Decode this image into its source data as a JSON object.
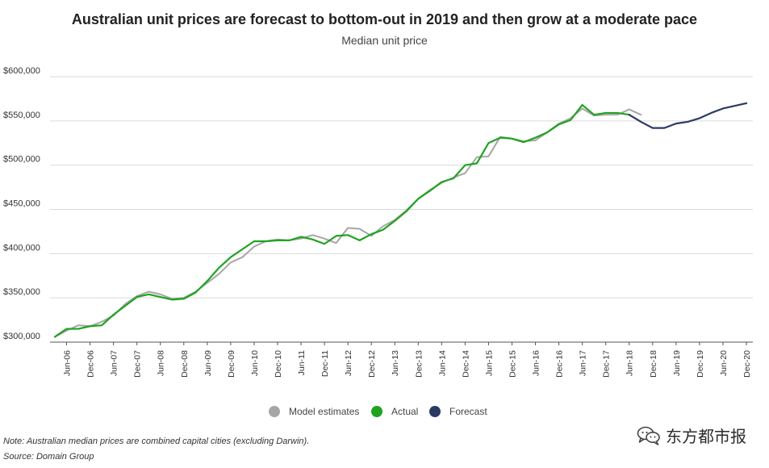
{
  "header": {
    "title": "Australian unit prices are forecast to bottom-out in 2019 and then grow at a moderate pace",
    "subtitle": "Median unit price"
  },
  "footer": {
    "note": "Note: Australian median prices are combined capital cities (excluding Darwin).",
    "source": "Source: Domain Group",
    "watermark_text": "东方都市报"
  },
  "colors": {
    "model": "#a6a6a6",
    "actual": "#1fa31f",
    "forecast": "#2b3a63",
    "grid": "#d9d9d9",
    "axis": "#555555"
  },
  "chart_data": {
    "type": "line",
    "x_axis_type": "quarterly",
    "xlabel": "",
    "ylabel": "",
    "ylim": [
      300000,
      600000
    ],
    "yticks": [
      300000,
      350000,
      400000,
      450000,
      500000,
      550000,
      600000
    ],
    "ytick_labels": [
      "$300,000",
      "$350,000",
      "$400,000",
      "$450,000",
      "$500,000",
      "$550,000",
      "$600,000"
    ],
    "xtick_labels": [
      "Jun-06",
      "Dec-06",
      "Jun-07",
      "Dec-07",
      "Jun-08",
      "Dec-08",
      "Jun-09",
      "Dec-09",
      "Jun-10",
      "Dec-10",
      "Jun-11",
      "Dec-11",
      "Jun-12",
      "Dec-12",
      "Jun-13",
      "Dec-13",
      "Jun-14",
      "Dec-14",
      "Jun-15",
      "Dec-15",
      "Jun-16",
      "Dec-16",
      "Jun-17",
      "Dec-17",
      "Jun-18",
      "Dec-18",
      "Jun-19",
      "Dec-19",
      "Jun-20",
      "Dec-20"
    ],
    "x": [
      "Mar-06",
      "Jun-06",
      "Sep-06",
      "Dec-06",
      "Mar-07",
      "Jun-07",
      "Sep-07",
      "Dec-07",
      "Mar-08",
      "Jun-08",
      "Sep-08",
      "Dec-08",
      "Mar-09",
      "Jun-09",
      "Sep-09",
      "Dec-09",
      "Mar-10",
      "Jun-10",
      "Sep-10",
      "Dec-10",
      "Mar-11",
      "Jun-11",
      "Sep-11",
      "Dec-11",
      "Mar-12",
      "Jun-12",
      "Sep-12",
      "Dec-12",
      "Mar-13",
      "Jun-13",
      "Sep-13",
      "Dec-13",
      "Mar-14",
      "Jun-14",
      "Sep-14",
      "Dec-14",
      "Mar-15",
      "Jun-15",
      "Sep-15",
      "Dec-15",
      "Mar-16",
      "Jun-16",
      "Sep-16",
      "Dec-16",
      "Mar-17",
      "Jun-17",
      "Sep-17",
      "Dec-17",
      "Mar-18",
      "Jun-18",
      "Sep-18",
      "Dec-18",
      "Mar-19",
      "Jun-19",
      "Sep-19",
      "Dec-19",
      "Mar-20",
      "Jun-20",
      "Sep-20",
      "Dec-20"
    ],
    "series": [
      {
        "name": "Model estimates",
        "color": "#a6a6a6",
        "values": [
          306000,
          313000,
          319000,
          318000,
          323000,
          330000,
          343000,
          352000,
          357000,
          354000,
          349000,
          350000,
          357000,
          367000,
          377000,
          390000,
          396000,
          408000,
          414000,
          416000,
          415000,
          417000,
          421000,
          417000,
          412000,
          429000,
          428000,
          420000,
          431000,
          438000,
          449000,
          462000,
          472000,
          480000,
          486000,
          491000,
          509000,
          510000,
          532000,
          530000,
          527000,
          528000,
          537000,
          547000,
          553000,
          564000,
          556000,
          557000,
          557000,
          563000,
          557000,
          null,
          null,
          null,
          null,
          null,
          null,
          null,
          null,
          null
        ]
      },
      {
        "name": "Actual",
        "color": "#1fa31f",
        "values": [
          306000,
          315000,
          315000,
          318000,
          319000,
          331000,
          341000,
          351000,
          354000,
          351000,
          348000,
          349000,
          356000,
          369000,
          384000,
          396000,
          405000,
          414000,
          414000,
          415000,
          415000,
          419000,
          416000,
          411000,
          420000,
          421000,
          415000,
          422000,
          427000,
          437000,
          448000,
          462000,
          471000,
          481000,
          485000,
          500000,
          502000,
          525000,
          531000,
          530000,
          526000,
          531000,
          537000,
          546000,
          551000,
          568000,
          557000,
          559000,
          559000,
          557000,
          null,
          null,
          null,
          null,
          null,
          null,
          null,
          null,
          null,
          null
        ]
      },
      {
        "name": "Forecast",
        "color": "#2b3a63",
        "values": [
          null,
          null,
          null,
          null,
          null,
          null,
          null,
          null,
          null,
          null,
          null,
          null,
          null,
          null,
          null,
          null,
          null,
          null,
          null,
          null,
          null,
          null,
          null,
          null,
          null,
          null,
          null,
          null,
          null,
          null,
          null,
          null,
          null,
          null,
          null,
          null,
          null,
          null,
          null,
          null,
          null,
          null,
          null,
          null,
          null,
          null,
          null,
          null,
          null,
          557000,
          549000,
          542000,
          542000,
          547000,
          549000,
          553000,
          559000,
          564000,
          567000,
          570000
        ]
      }
    ],
    "legend": {
      "position": "bottom-center",
      "entries": [
        "Model estimates",
        "Actual",
        "Forecast"
      ]
    },
    "grid": "horizontal"
  }
}
